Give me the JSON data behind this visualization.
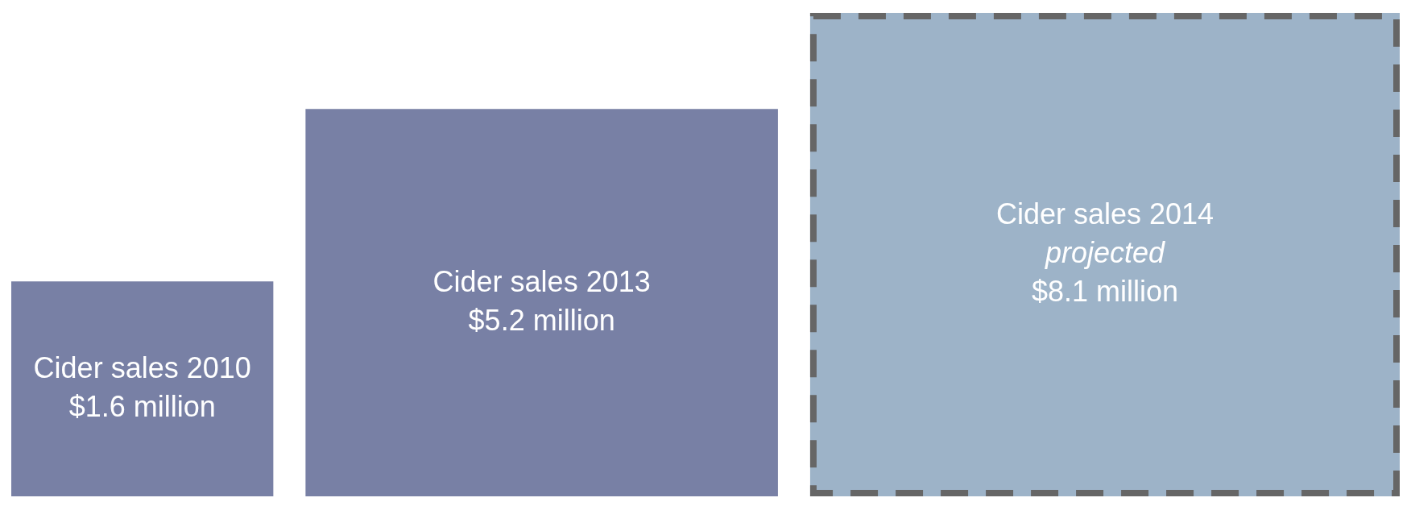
{
  "chart_data": {
    "type": "other",
    "categories": [
      "Cider sales 2010",
      "Cider sales 2013",
      "Cider sales 2014"
    ],
    "values": [
      1.6,
      5.2,
      8.1
    ],
    "value_labels": [
      "$1.6 million",
      "$5.2 million",
      "$8.1 million"
    ],
    "colors": [
      "#7880a5",
      "#7880a5",
      "#9db3c8"
    ],
    "annotations": [
      {
        "text": "projected",
        "x": "Cider sales 2014"
      }
    ]
  }
}
